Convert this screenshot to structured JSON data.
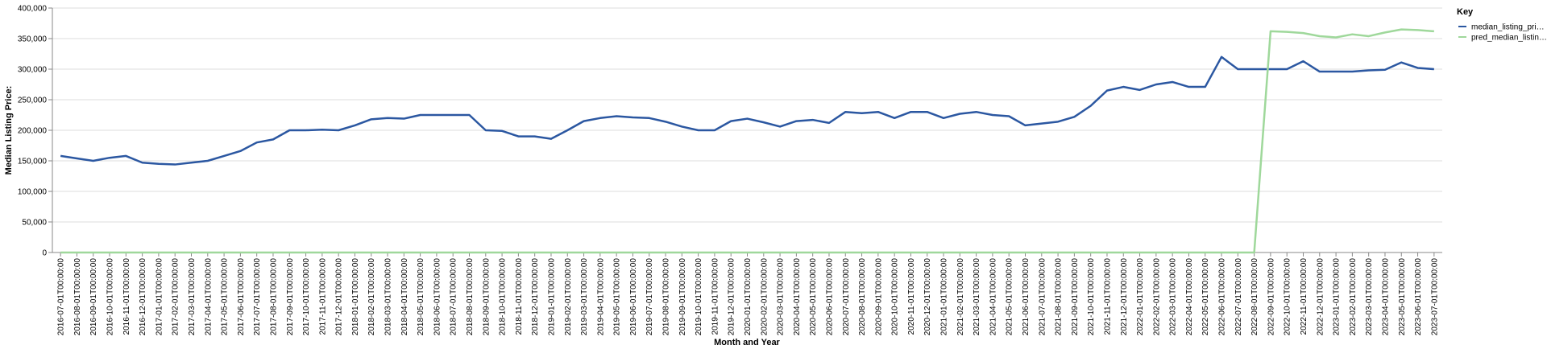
{
  "chart_data": {
    "type": "line",
    "y_label": "Median Listing Price:",
    "x_label": "Month and Year",
    "legend_title": "Key",
    "legend_position": "right",
    "grid": true,
    "categories": [
      "2016-07-01T00:00:00",
      "2016-08-01T00:00:00",
      "2016-09-01T00:00:00",
      "2016-10-01T00:00:00",
      "2016-11-01T00:00:00",
      "2016-12-01T00:00:00",
      "2017-01-01T00:00:00",
      "2017-02-01T00:00:00",
      "2017-03-01T00:00:00",
      "2017-04-01T00:00:00",
      "2017-05-01T00:00:00",
      "2017-06-01T00:00:00",
      "2017-07-01T00:00:00",
      "2017-08-01T00:00:00",
      "2017-09-01T00:00:00",
      "2017-10-01T00:00:00",
      "2017-11-01T00:00:00",
      "2017-12-01T00:00:00",
      "2018-01-01T00:00:00",
      "2018-02-01T00:00:00",
      "2018-03-01T00:00:00",
      "2018-04-01T00:00:00",
      "2018-05-01T00:00:00",
      "2018-06-01T00:00:00",
      "2018-07-01T00:00:00",
      "2018-08-01T00:00:00",
      "2018-09-01T00:00:00",
      "2018-10-01T00:00:00",
      "2018-11-01T00:00:00",
      "2018-12-01T00:00:00",
      "2019-01-01T00:00:00",
      "2019-02-01T00:00:00",
      "2019-03-01T00:00:00",
      "2019-04-01T00:00:00",
      "2019-05-01T00:00:00",
      "2019-06-01T00:00:00",
      "2019-07-01T00:00:00",
      "2019-08-01T00:00:00",
      "2019-09-01T00:00:00",
      "2019-10-01T00:00:00",
      "2019-11-01T00:00:00",
      "2019-12-01T00:00:00",
      "2020-01-01T00:00:00",
      "2020-02-01T00:00:00",
      "2020-03-01T00:00:00",
      "2020-04-01T00:00:00",
      "2020-05-01T00:00:00",
      "2020-06-01T00:00:00",
      "2020-07-01T00:00:00",
      "2020-08-01T00:00:00",
      "2020-09-01T00:00:00",
      "2020-10-01T00:00:00",
      "2020-11-01T00:00:00",
      "2020-12-01T00:00:00",
      "2021-01-01T00:00:00",
      "2021-02-01T00:00:00",
      "2021-03-01T00:00:00",
      "2021-04-01T00:00:00",
      "2021-05-01T00:00:00",
      "2021-06-01T00:00:00",
      "2021-07-01T00:00:00",
      "2021-08-01T00:00:00",
      "2021-09-01T00:00:00",
      "2021-10-01T00:00:00",
      "2021-11-01T00:00:00",
      "2021-12-01T00:00:00",
      "2022-01-01T00:00:00",
      "2022-02-01T00:00:00",
      "2022-03-01T00:00:00",
      "2022-04-01T00:00:00",
      "2022-05-01T00:00:00",
      "2022-06-01T00:00:00",
      "2022-07-01T00:00:00",
      "2022-08-01T00:00:00",
      "2022-09-01T00:00:00",
      "2022-10-01T00:00:00",
      "2022-11-01T00:00:00",
      "2022-12-01T00:00:00",
      "2023-01-01T00:00:00",
      "2023-02-01T00:00:00",
      "2023-03-01T00:00:00",
      "2023-04-01T00:00:00",
      "2023-05-01T00:00:00",
      "2023-06-01T00:00:00",
      "2023-07-01T00:00:00"
    ],
    "series": [
      {
        "name": "median_listing_pri…",
        "color": "#2b57a1",
        "values": [
          158000,
          154000,
          150000,
          155000,
          158000,
          147000,
          145000,
          144000,
          147000,
          150000,
          158000,
          166000,
          180000,
          185000,
          200000,
          200000,
          201000,
          200000,
          208000,
          218000,
          220000,
          219000,
          225000,
          225000,
          225000,
          225000,
          200000,
          199000,
          190000,
          190000,
          186000,
          200000,
          215000,
          220000,
          223000,
          221000,
          220000,
          214000,
          206000,
          200000,
          200000,
          215000,
          219000,
          213000,
          206000,
          215000,
          217000,
          212000,
          230000,
          228000,
          230000,
          220000,
          230000,
          230000,
          220000,
          227000,
          230000,
          225000,
          223000,
          208000,
          211000,
          214000,
          222000,
          240000,
          265000,
          271000,
          266000,
          275000,
          279000,
          271000,
          271000,
          320000,
          300000,
          300000,
          300000,
          300000,
          313000,
          296000,
          296000,
          296000,
          298000,
          299000,
          311000,
          302000,
          300000
        ]
      },
      {
        "name": "pred_median_listin…",
        "color": "#9fd89b",
        "values": [
          0,
          0,
          0,
          0,
          0,
          0,
          0,
          0,
          0,
          0,
          0,
          0,
          0,
          0,
          0,
          0,
          0,
          0,
          0,
          0,
          0,
          0,
          0,
          0,
          0,
          0,
          0,
          0,
          0,
          0,
          0,
          0,
          0,
          0,
          0,
          0,
          0,
          0,
          0,
          0,
          0,
          0,
          0,
          0,
          0,
          0,
          0,
          0,
          0,
          0,
          0,
          0,
          0,
          0,
          0,
          0,
          0,
          0,
          0,
          0,
          0,
          0,
          0,
          0,
          0,
          0,
          0,
          0,
          0,
          0,
          0,
          0,
          0,
          0,
          362000,
          361000,
          359000,
          354000,
          352000,
          357000,
          354000,
          360000,
          365000,
          364000,
          362000
        ]
      }
    ],
    "ylim": [
      0,
      400000
    ],
    "yticks": [
      0,
      {
        "value": 50000,
        "label": "50,000"
      },
      {
        "value": 100000,
        "label": "100,000"
      },
      {
        "value": 150000,
        "label": "150,000"
      },
      {
        "value": 200000,
        "label": "200,000"
      },
      {
        "value": 250000,
        "label": "250,000"
      },
      {
        "value": 300000,
        "label": "300,000"
      },
      {
        "value": 350000,
        "label": "350,000"
      },
      {
        "value": 400000,
        "label": "400,000"
      }
    ]
  }
}
